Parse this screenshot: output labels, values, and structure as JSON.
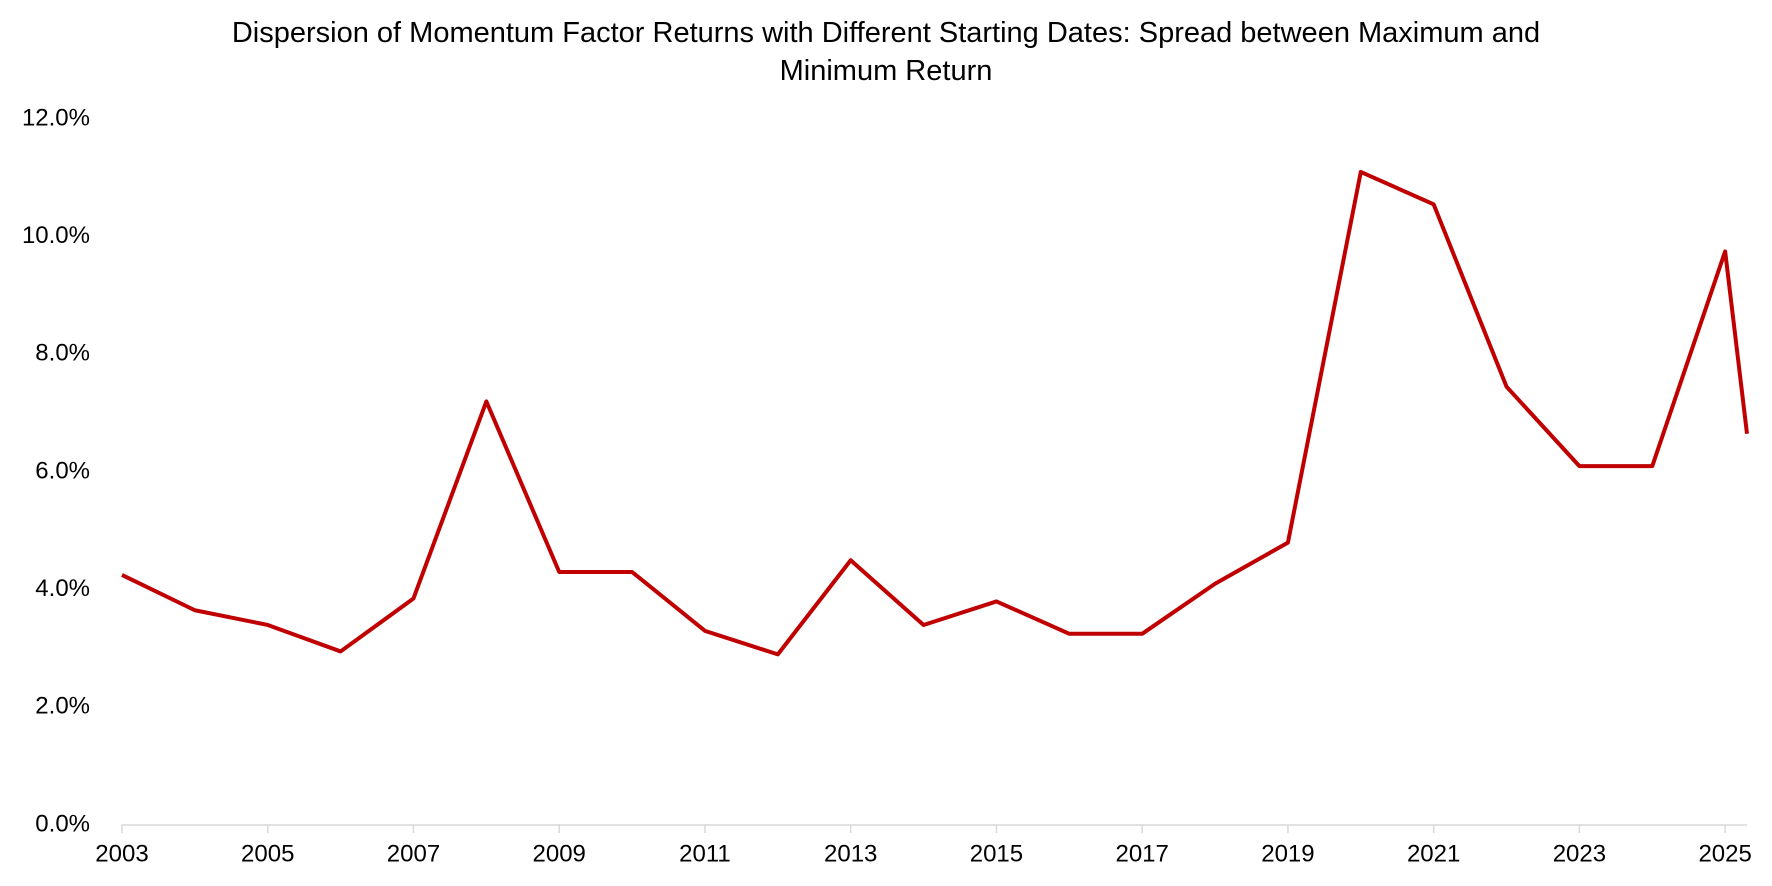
{
  "chart_data": {
    "type": "line",
    "title": "Dispersion of Momentum Factor Returns with Different Starting Dates: Spread between Maximum and Minimum Return",
    "x": [
      2003,
      2004,
      2005,
      2006,
      2007,
      2008,
      2009,
      2010,
      2011,
      2012,
      2013,
      2014,
      2015,
      2016,
      2017,
      2018,
      2019,
      2020,
      2021,
      2022,
      2023,
      2024,
      2025,
      2025.3
    ],
    "series": [
      {
        "name": "Spread",
        "color": "#c00000",
        "values": [
          4.25,
          3.65,
          3.4,
          2.95,
          3.85,
          7.2,
          4.3,
          4.3,
          3.3,
          2.9,
          4.5,
          3.4,
          3.8,
          3.25,
          3.25,
          4.1,
          4.8,
          11.1,
          10.55,
          7.45,
          6.1,
          6.1,
          9.75,
          6.65
        ]
      }
    ],
    "xlim": [
      2003,
      2025.3
    ],
    "xticks": [
      2003,
      2005,
      2007,
      2009,
      2011,
      2013,
      2015,
      2017,
      2019,
      2021,
      2023,
      2025
    ],
    "ylim": [
      0,
      12
    ],
    "yticks": [
      {
        "value": 0,
        "label": "0.0%"
      },
      {
        "value": 2,
        "label": "2.0%"
      },
      {
        "value": 4,
        "label": "4.0%"
      },
      {
        "value": 6,
        "label": "6.0%"
      },
      {
        "value": 8,
        "label": "8.0%"
      },
      {
        "value": 10,
        "label": "10.0%"
      },
      {
        "value": 12,
        "label": "12.0%"
      }
    ],
    "grid": false
  }
}
